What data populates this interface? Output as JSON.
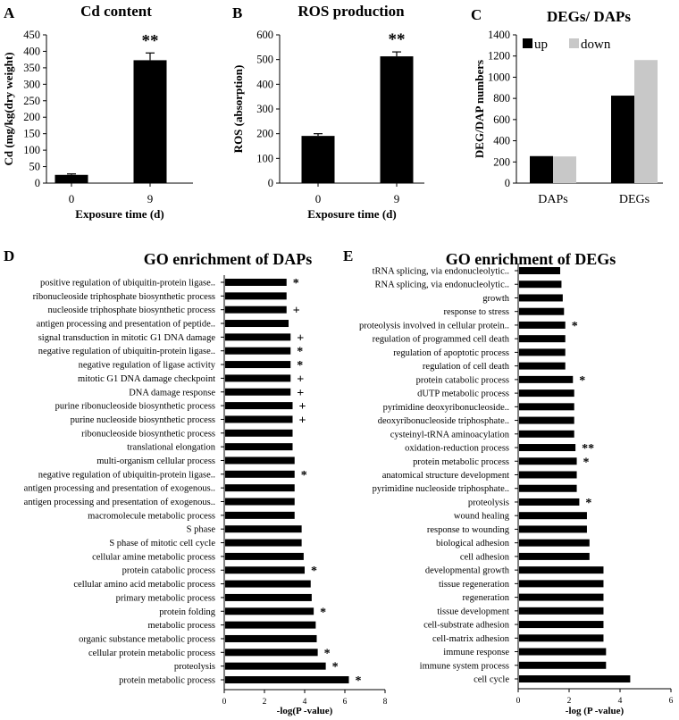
{
  "chart_data": [
    {
      "panel": "A",
      "type": "bar",
      "title": "Cd content",
      "ylabel": "Cd (mg/kg(dry weight)",
      "xlabel": "Exposure time (d)",
      "categories": [
        "0",
        "9"
      ],
      "values": [
        25,
        373
      ],
      "errors": [
        3,
        22
      ],
      "significance": [
        "",
        "**"
      ],
      "ylim": [
        0,
        450
      ],
      "yticks": [
        0,
        50,
        100,
        150,
        200,
        250,
        300,
        350,
        400,
        450
      ]
    },
    {
      "panel": "B",
      "type": "bar",
      "title": "ROS production",
      "ylabel": "ROS (absorption)",
      "xlabel": "Exposure time (d)",
      "categories": [
        "0",
        "9"
      ],
      "values": [
        191,
        513
      ],
      "errors": [
        9,
        18
      ],
      "significance": [
        "",
        "**"
      ],
      "ylim": [
        0,
        600
      ],
      "yticks": [
        0,
        100,
        200,
        300,
        400,
        500,
        600
      ]
    },
    {
      "panel": "C",
      "type": "bar",
      "title": "DEGs/ DAPs",
      "ylabel": "DEG/DAP  numbers",
      "xlabel": "",
      "categories": [
        "DAPs",
        "DEGs"
      ],
      "series": [
        {
          "name": "up",
          "color": "#000000",
          "values": [
            255,
            826
          ]
        },
        {
          "name": "down",
          "color": "#c8c8c8",
          "values": [
            252,
            1162
          ]
        }
      ],
      "legend_position": "top-left",
      "ylim": [
        0,
        1400
      ],
      "yticks": [
        0,
        200,
        400,
        600,
        800,
        1000,
        1200,
        1400
      ]
    },
    {
      "panel": "D",
      "type": "bar",
      "orientation": "horizontal",
      "title": "GO enrichment of DAPs",
      "xlabel": "-log(P -value)",
      "xlim": [
        0,
        8
      ],
      "xticks": [
        0,
        2,
        4,
        6,
        8
      ],
      "categories": [
        "positive regulation of ubiquitin-protein ligase..",
        "ribonucleoside triphosphate biosynthetic process",
        "nucleoside triphosphate biosynthetic process",
        "antigen processing and presentation of peptide..",
        "signal transduction in mitotic G1 DNA damage",
        "negative regulation of ubiquitin-protein ligase..",
        "negative regulation of ligase activity",
        "mitotic G1 DNA damage checkpoint",
        "DNA damage response",
        "purine ribonucleoside biosynthetic process",
        "purine nucleoside biosynthetic process",
        "ribonucleoside biosynthetic process",
        "translational elongation",
        "multi-organism cellular process",
        "negative regulation of ubiquitin-protein ligase..",
        "antigen processing and presentation of exogenous..",
        "antigen processing and presentation of exogenous..",
        "macromolecule metabolic process",
        "S phase",
        "S phase of mitotic cell cycle",
        "cellular amine metabolic process",
        "protein catabolic process",
        "cellular amino acid metabolic process",
        "primary metabolic process",
        "protein folding",
        "metabolic process",
        "organic substance metabolic process",
        "cellular protein metabolic process",
        "proteolysis",
        "protein metabolic process"
      ],
      "values": [
        3.1,
        3.1,
        3.1,
        3.2,
        3.3,
        3.3,
        3.3,
        3.3,
        3.3,
        3.4,
        3.4,
        3.4,
        3.4,
        3.5,
        3.5,
        3.5,
        3.5,
        3.5,
        3.85,
        3.85,
        3.95,
        4.0,
        4.3,
        4.35,
        4.45,
        4.55,
        4.6,
        4.65,
        5.05,
        6.2
      ],
      "markers": [
        "*",
        "",
        "+",
        "",
        "+",
        "*",
        "*",
        "+",
        "+",
        "+",
        "+",
        "",
        "",
        "",
        "*",
        "",
        "",
        "",
        "",
        "",
        "",
        "*",
        "",
        "",
        "*",
        "",
        "",
        "*",
        "*",
        "*"
      ]
    },
    {
      "panel": "E",
      "type": "bar",
      "orientation": "horizontal",
      "title": "GO enrichment of DEGs",
      "xlabel": "-log (P -value)",
      "xlim": [
        0,
        6
      ],
      "xticks": [
        0,
        2,
        4,
        6
      ],
      "categories": [
        "tRNA splicing, via endonucleolytic..",
        "RNA splicing, via endonucleolytic..",
        "growth",
        "response to stress",
        "proteolysis involved in cellular protein..",
        "regulation of programmed cell death",
        "regulation of apoptotic process",
        "regulation of cell death",
        "protein catabolic process",
        "dUTP metabolic process",
        "pyrimidine deoxyribonucleoside..",
        "deoxyribonucleoside triphosphate..",
        "cysteinyl-tRNA aminoacylation",
        "oxidation-reduction process",
        "protein metabolic process",
        "anatomical structure development",
        "pyrimidine nucleoside triphosphate..",
        "proteolysis",
        "wound healing",
        "response to wounding",
        "biological adhesion",
        "cell adhesion",
        "developmental growth",
        "tissue regeneration",
        "regeneration",
        "tissue development",
        "cell-substrate adhesion",
        "cell-matrix adhesion",
        "immune response",
        "immune system process",
        "cell cycle"
      ],
      "values": [
        1.65,
        1.7,
        1.75,
        1.8,
        1.85,
        1.85,
        1.85,
        1.85,
        2.15,
        2.2,
        2.2,
        2.2,
        2.2,
        2.25,
        2.3,
        2.3,
        2.3,
        2.4,
        2.7,
        2.7,
        2.8,
        2.8,
        3.35,
        3.35,
        3.35,
        3.35,
        3.35,
        3.35,
        3.45,
        3.45,
        4.4
      ],
      "markers": [
        "",
        "",
        "",
        "",
        "*",
        "",
        "",
        "",
        "*",
        "",
        "",
        "",
        "",
        "**",
        "*",
        "",
        "",
        "*",
        "",
        "",
        "",
        "",
        "",
        "",
        "",
        "",
        "",
        "",
        "",
        "",
        ""
      ]
    }
  ]
}
